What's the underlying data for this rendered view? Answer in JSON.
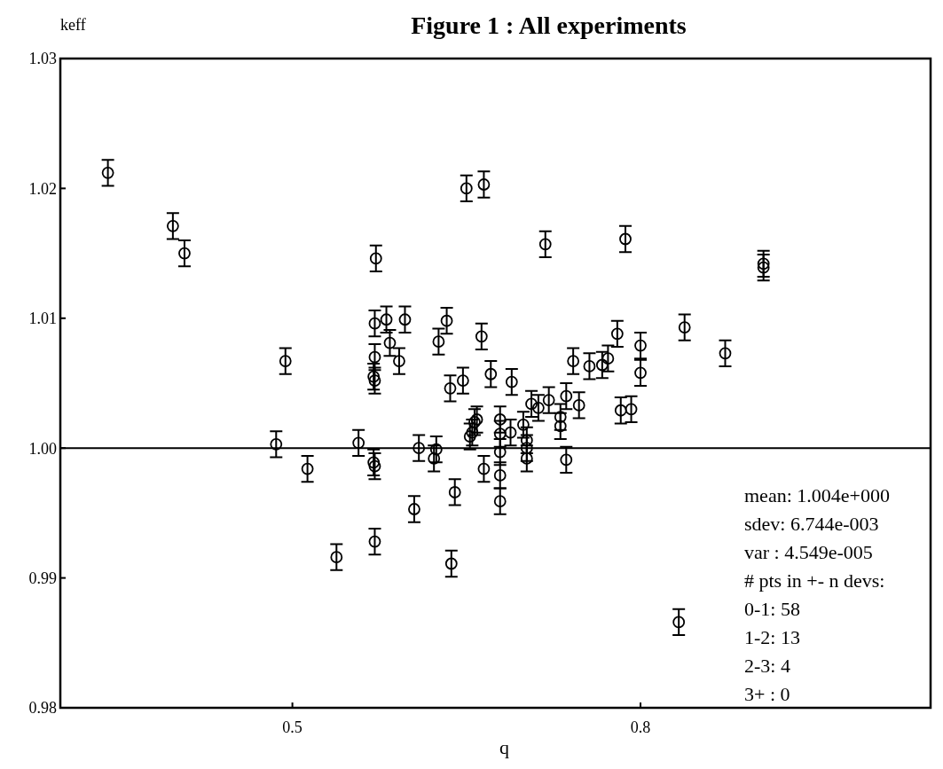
{
  "chart_data": {
    "type": "scatter",
    "title": "Figure 1 : All experiments",
    "xlabel": "q",
    "ylabel": "keff",
    "x": [
      0.341,
      0.397,
      0.407,
      0.572,
      0.65,
      0.665,
      0.494,
      0.571,
      0.581,
      0.597,
      0.584,
      0.571,
      0.592,
      0.57,
      0.571,
      0.626,
      0.633,
      0.636,
      0.647,
      0.663,
      0.718,
      0.787,
      0.906,
      0.906,
      0.671,
      0.689,
      0.742,
      0.756,
      0.767,
      0.772,
      0.78,
      0.8,
      0.8,
      0.838,
      0.873,
      0.486,
      0.513,
      0.538,
      0.557,
      0.57,
      0.571,
      0.571,
      0.609,
      0.624,
      0.622,
      0.605,
      0.64,
      0.637,
      0.653,
      0.657,
      0.659,
      0.665,
      0.679,
      0.679,
      0.688,
      0.679,
      0.679,
      0.679,
      0.699,
      0.702,
      0.702,
      0.702,
      0.706,
      0.712,
      0.721,
      0.731,
      0.731,
      0.736,
      0.736,
      0.747,
      0.783,
      0.792,
      0.833,
      0.655
    ],
    "values": [
      1.0212,
      1.0171,
      1.015,
      1.0146,
      1.02,
      1.0203,
      1.0067,
      1.0096,
      1.0099,
      1.0099,
      1.0081,
      1.007,
      1.0067,
      1.0055,
      1.0052,
      1.0082,
      1.0098,
      1.0046,
      1.0052,
      1.0086,
      1.0157,
      1.0161,
      1.0142,
      1.0139,
      1.0057,
      1.0051,
      1.0067,
      1.0063,
      1.0064,
      1.0069,
      1.0088,
      1.0079,
      1.0058,
      1.0093,
      1.0073,
      1.0003,
      0.9984,
      0.9916,
      1.0004,
      0.9989,
      0.9986,
      0.9928,
      1.0,
      0.9999,
      0.9992,
      0.9953,
      0.9966,
      0.9911,
      1.0009,
      1.002,
      1.0022,
      0.9984,
      1.0022,
      1.0011,
      1.0012,
      0.9997,
      0.9979,
      0.9959,
      1.0018,
      1.0006,
      0.9992,
      1.0,
      1.0034,
      1.0031,
      1.0037,
      1.0024,
      1.0017,
      1.004,
      0.9991,
      1.0033,
      1.0029,
      1.003,
      0.9866,
      1.0012
    ],
    "errors": [
      0.001,
      0.001,
      0.001,
      0.001,
      0.001,
      0.001,
      0.001,
      0.001,
      0.001,
      0.001,
      0.001,
      0.001,
      0.001,
      0.001,
      0.001,
      0.001,
      0.001,
      0.001,
      0.001,
      0.001,
      0.001,
      0.001,
      0.001,
      0.001,
      0.001,
      0.001,
      0.001,
      0.001,
      0.001,
      0.001,
      0.001,
      0.001,
      0.001,
      0.001,
      0.001,
      0.001,
      0.001,
      0.001,
      0.001,
      0.001,
      0.001,
      0.001,
      0.001,
      0.001,
      0.001,
      0.001,
      0.001,
      0.001,
      0.001,
      0.001,
      0.001,
      0.001,
      0.001,
      0.001,
      0.001,
      0.001,
      0.001,
      0.001,
      0.001,
      0.001,
      0.001,
      0.001,
      0.001,
      0.001,
      0.001,
      0.001,
      0.001,
      0.001,
      0.001,
      0.001,
      0.001,
      0.001,
      0.001,
      0.001
    ],
    "color": "#000000",
    "marker": "circle",
    "xlim": [
      0.3,
      1.05
    ],
    "xticks": [
      0.5,
      0.8
    ],
    "ylim": [
      0.98,
      1.03
    ],
    "yticks": [
      0.98,
      0.99,
      {
        "value": 1,
        "label": "1.00"
      },
      1.01,
      1.02,
      1.03
    ],
    "ref_lines": [
      {
        "axis": "y",
        "value": 1,
        "color": "#000000"
      }
    ],
    "grid": false,
    "annotations": [
      "mean: 1.004e+000",
      "sdev: 6.744e-003",
      "var : 4.549e-005",
      "# pts in +- n devs:",
      "0-1: 58",
      "1-2: 13",
      "2-3: 4",
      "3+ : 0"
    ]
  }
}
